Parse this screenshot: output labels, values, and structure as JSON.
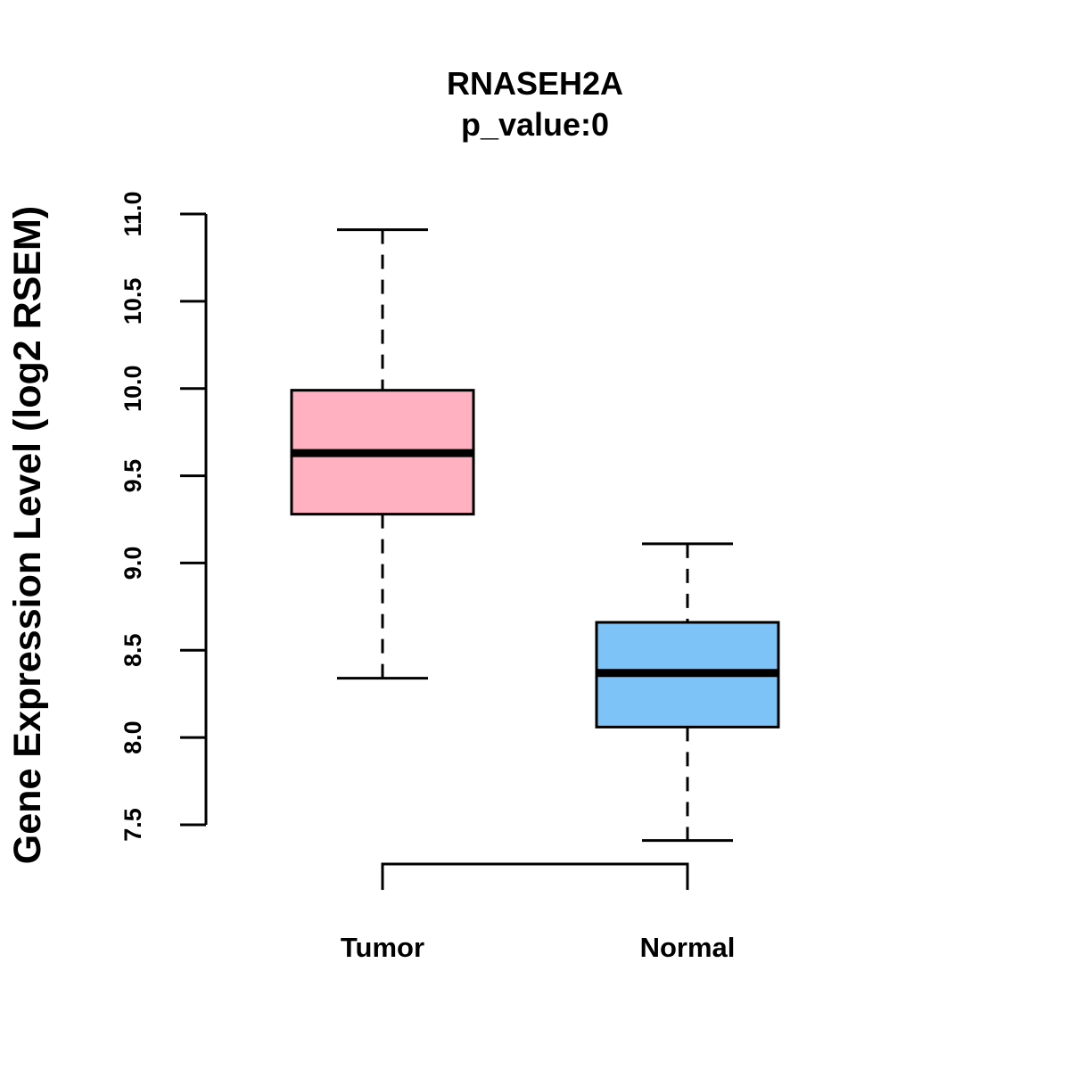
{
  "chart_data": {
    "type": "boxplot",
    "title": "RNASEH2A",
    "subtitle": "p_value:0",
    "xlabel": "",
    "ylabel": "Gene Expression Level (log2 RSEM)",
    "ylim": [
      7.5,
      11.0
    ],
    "y_ticks": [
      "7.5",
      "8.0",
      "8.5",
      "9.0",
      "9.5",
      "10.0",
      "10.5",
      "11.0"
    ],
    "grid": false,
    "categories": [
      "Tumor",
      "Normal"
    ],
    "series": [
      {
        "name": "Tumor",
        "whisker_low": 8.34,
        "q1": 9.28,
        "median": 9.63,
        "q3": 9.99,
        "whisker_high": 10.91,
        "color": "#FFB0C1"
      },
      {
        "name": "Normal",
        "whisker_low": 7.41,
        "q1": 8.06,
        "median": 8.37,
        "q3": 8.66,
        "whisker_high": 9.11,
        "color": "#7DC3F8"
      }
    ]
  }
}
